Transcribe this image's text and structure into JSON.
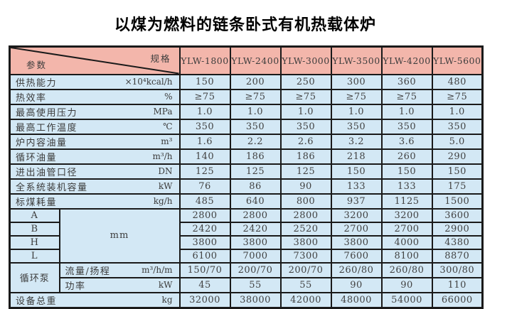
{
  "title": "以煤为燃料的链条卧式有机热载体炉",
  "colors": {
    "header_bg": "#f3b6ab",
    "body_bg": "#d3e8f5",
    "border": "#1a1a1a",
    "page_bg": "#ffffff"
  },
  "table": {
    "corner": {
      "top_right": "规格",
      "bottom_left": "参数"
    },
    "columns": [
      "YLW-1800",
      "YLW-2400",
      "YLW-3000",
      "YLW-3500",
      "YLW-4200",
      "YLW-5600"
    ],
    "rows": [
      {
        "label": "供热能力",
        "unit": "×10⁴kcal/h",
        "values": [
          "150",
          "200",
          "250",
          "300",
          "360",
          "480"
        ]
      },
      {
        "label": "热效率",
        "unit": "%",
        "values": [
          "≥75",
          "≥75",
          "≥75",
          "≥75",
          "≥75",
          "≥75"
        ]
      },
      {
        "label": "最高使用压力",
        "unit": "MPa",
        "values": [
          "1.0",
          "1.0",
          "1.0",
          "1.0",
          "1.0",
          "1.0"
        ]
      },
      {
        "label": "最高工作温度",
        "unit": "℃",
        "values": [
          "350",
          "350",
          "350",
          "350",
          "350",
          "350"
        ]
      },
      {
        "label": "炉内容油量",
        "unit": "m³",
        "values": [
          "1.6",
          "2.2",
          "2.6",
          "3.2",
          "3.6",
          "5.0"
        ]
      },
      {
        "label": "循环油量",
        "unit": "m³/h",
        "values": [
          "140",
          "186",
          "186",
          "218",
          "260",
          "290"
        ]
      },
      {
        "label": "进出油管口径",
        "unit": "DN",
        "values": [
          "125",
          "125",
          "125",
          "150",
          "150",
          "150"
        ]
      },
      {
        "label": "全系统装机容量",
        "unit": "kW",
        "values": [
          "76",
          "86",
          "90",
          "133",
          "133",
          "175"
        ]
      },
      {
        "label": "标煤耗量",
        "unit": "kg/h",
        "values": [
          "485",
          "640",
          "800",
          "937",
          "1125",
          "1500"
        ]
      }
    ],
    "dimensions": {
      "unit": "mm",
      "rows": [
        {
          "label": "A",
          "values": [
            "2800",
            "2800",
            "2800",
            "3200",
            "3200",
            "3600"
          ]
        },
        {
          "label": "B",
          "values": [
            "2420",
            "2420",
            "2520",
            "2700",
            "2700",
            "2900"
          ]
        },
        {
          "label": "H",
          "values": [
            "3800",
            "3800",
            "3800",
            "3800",
            "4000",
            "4380"
          ]
        },
        {
          "label": "L",
          "values": [
            "6100",
            "7000",
            "7300",
            "7600",
            "8100",
            "8870"
          ]
        }
      ]
    },
    "pump": {
      "label": "循环泵",
      "rows": [
        {
          "label": "流量/扬程",
          "unit": "m³/h/m",
          "values": [
            "150/70",
            "200/70",
            "200/70",
            "260/80",
            "260/80",
            "300/80"
          ]
        },
        {
          "label": "功率",
          "unit": "kW",
          "values": [
            "45",
            "55",
            "55",
            "90",
            "90",
            "110"
          ]
        }
      ]
    },
    "total": {
      "label": "设备总重",
      "unit": "kg",
      "values": [
        "32000",
        "38000",
        "42000",
        "48000",
        "54000",
        "66000"
      ]
    }
  }
}
